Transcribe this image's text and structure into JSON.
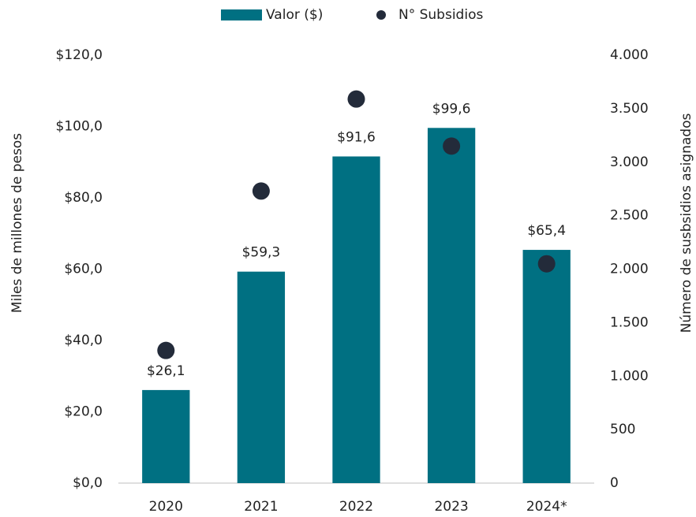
{
  "chart_data": {
    "type": "bar",
    "categories": [
      "2020",
      "2021",
      "2022",
      "2023",
      "2024*"
    ],
    "series": [
      {
        "name": "Valor ($)",
        "type": "bar",
        "color": "#007082",
        "values": [
          26.1,
          59.3,
          91.6,
          99.6,
          65.4
        ],
        "value_labels": [
          "$26,1",
          "$59,3",
          "$91,6",
          "$99,6",
          "$65,4"
        ]
      },
      {
        "name": "N° Subsidios",
        "type": "scatter",
        "axis": "y2",
        "color": "#232b3a",
        "values": [
          1240,
          2730,
          3590,
          3150,
          2050
        ]
      }
    ],
    "ylabel": "Miles de millones de pesos",
    "y2label": "Número de susbsidios asignados",
    "ylim": [
      0,
      120
    ],
    "yticks": [
      {
        "value": 0,
        "label": "$0,0"
      },
      {
        "value": 20,
        "label": "$20,0"
      },
      {
        "value": 40,
        "label": "$40,0"
      },
      {
        "value": 60,
        "label": "$60,0"
      },
      {
        "value": 80,
        "label": "$80,0"
      },
      {
        "value": 100,
        "label": "$100,0"
      },
      {
        "value": 120,
        "label": "$120,0"
      }
    ],
    "y2lim": [
      0,
      4000
    ],
    "y2ticks": [
      0,
      500,
      {
        "value": 1000,
        "label": "1.000"
      },
      {
        "value": 1500,
        "label": "1.500"
      },
      {
        "value": 2000,
        "label": "2.000"
      },
      {
        "value": 2500,
        "label": "2.500"
      },
      {
        "value": 3000,
        "label": "3.000"
      },
      {
        "value": 3500,
        "label": "3.500"
      },
      {
        "value": 4000,
        "label": "4.000"
      }
    ],
    "grid": false,
    "legend": "top"
  }
}
